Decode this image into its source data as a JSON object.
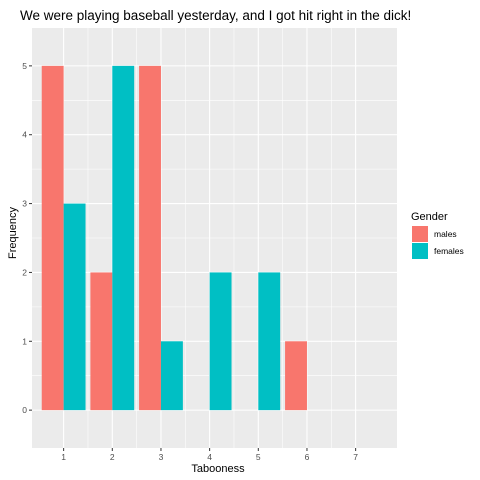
{
  "chart_data": {
    "type": "bar",
    "title": "We were playing baseball yesterday, and I got hit right in the dick!",
    "xlabel": "Tabooness",
    "ylabel": "Frequency",
    "categories": [
      1,
      2,
      3,
      4,
      5,
      6,
      7
    ],
    "x_ticks": [
      "1",
      "2",
      "3",
      "4",
      "5",
      "6",
      "7"
    ],
    "y_ticks": [
      "0",
      "1",
      "2",
      "3",
      "4",
      "5"
    ],
    "xlim": [
      0.35,
      7.85
    ],
    "ylim": [
      -0.55,
      5.55
    ],
    "legend_title": "Gender",
    "legend_position": "right",
    "grid": true,
    "series": [
      {
        "name": "males",
        "color": "#F8766D",
        "values": [
          5,
          2,
          5,
          0,
          0,
          1,
          0
        ]
      },
      {
        "name": "females",
        "color": "#00BFC4",
        "values": [
          3,
          5,
          1,
          2,
          2,
          0,
          0
        ]
      }
    ]
  }
}
